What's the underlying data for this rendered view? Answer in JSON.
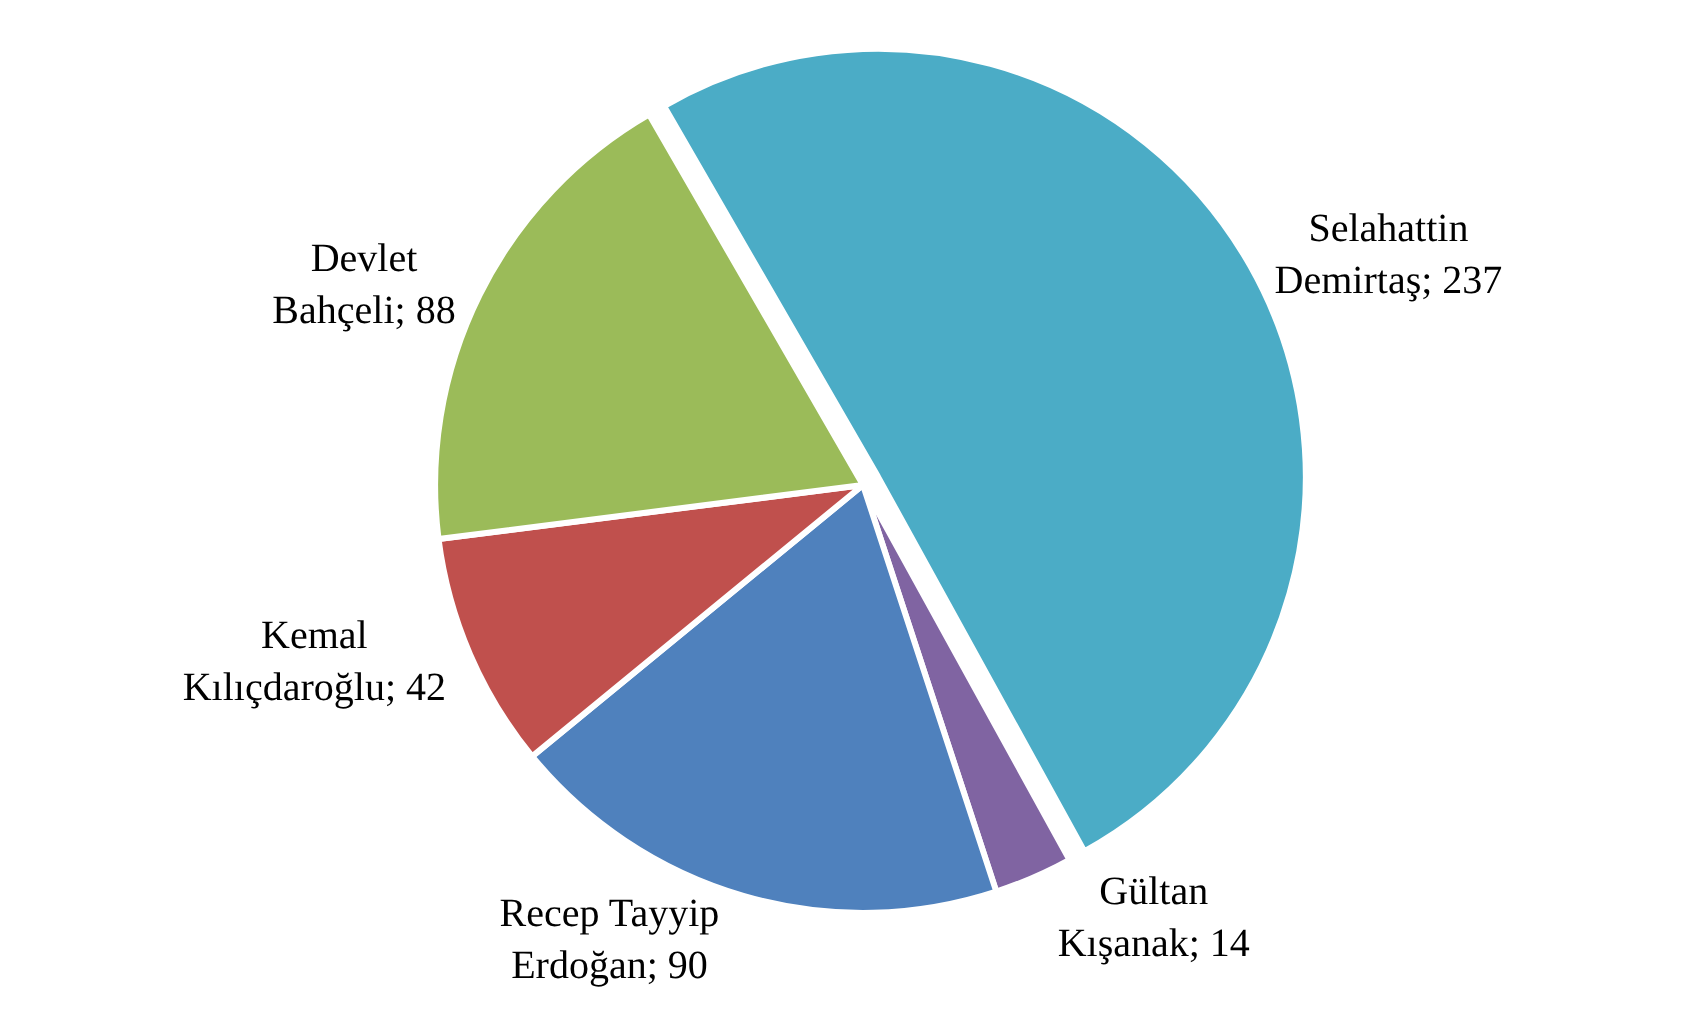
{
  "chart_data": {
    "type": "pie",
    "categories": [
      "Selahattin Demirtaş",
      "Gültan Kışanak",
      "Recep Tayyip Erdoğan",
      "Kemal Kılıçdaroğlu",
      "Devlet Bahçeli"
    ],
    "values": [
      237,
      14,
      90,
      42,
      88
    ],
    "colors": [
      "#4bacc6",
      "#8064a2",
      "#4f81bd",
      "#c0504d",
      "#9bbb59"
    ],
    "value_labels": [
      "; 237",
      "; 14",
      "; 90",
      "; 42",
      "; 88"
    ],
    "legend": false
  }
}
